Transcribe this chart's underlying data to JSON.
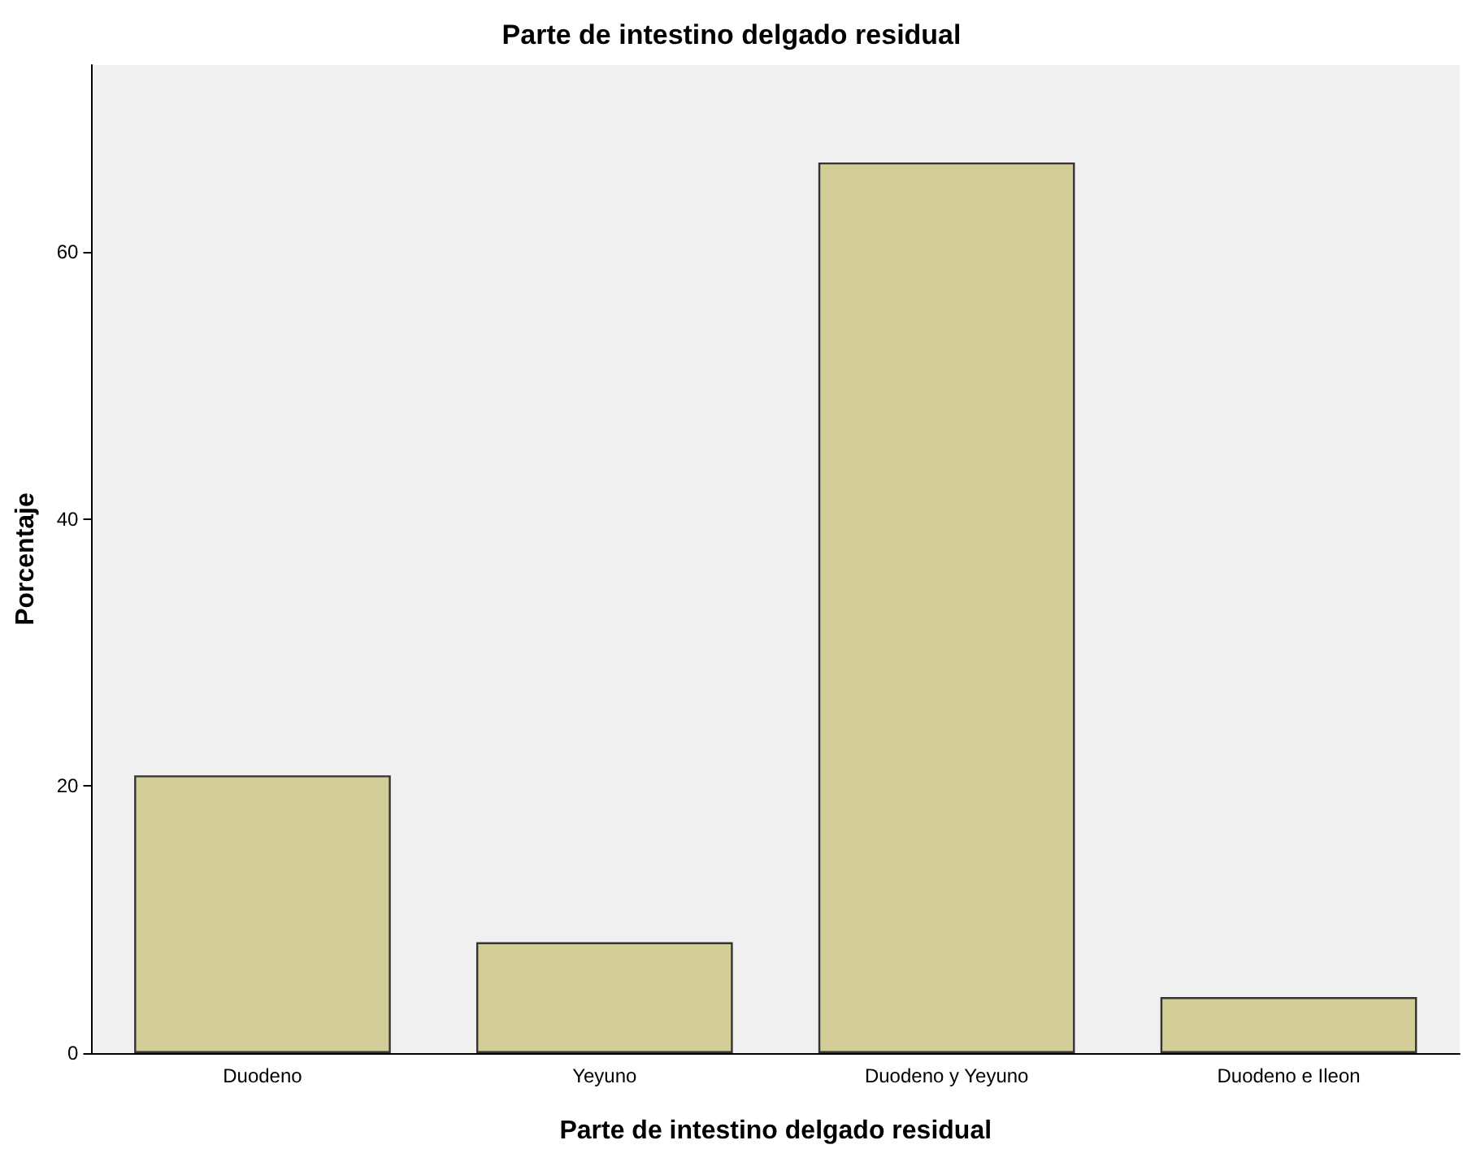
{
  "chart_data": {
    "type": "bar",
    "title": "Parte de intestino delgado residual",
    "xlabel": "Parte de intestino delgado residual",
    "ylabel": "Porcentaje",
    "categories": [
      "Duodeno",
      "Yeyuno",
      "Duodeno y Yeyuno",
      "Duodeno e Ileon"
    ],
    "values": [
      20.8,
      8.3,
      66.7,
      4.2
    ],
    "color": "#d3ce97",
    "ylim": [
      0,
      74
    ],
    "yticks": [
      0,
      20,
      40,
      60
    ],
    "grid": false
  }
}
